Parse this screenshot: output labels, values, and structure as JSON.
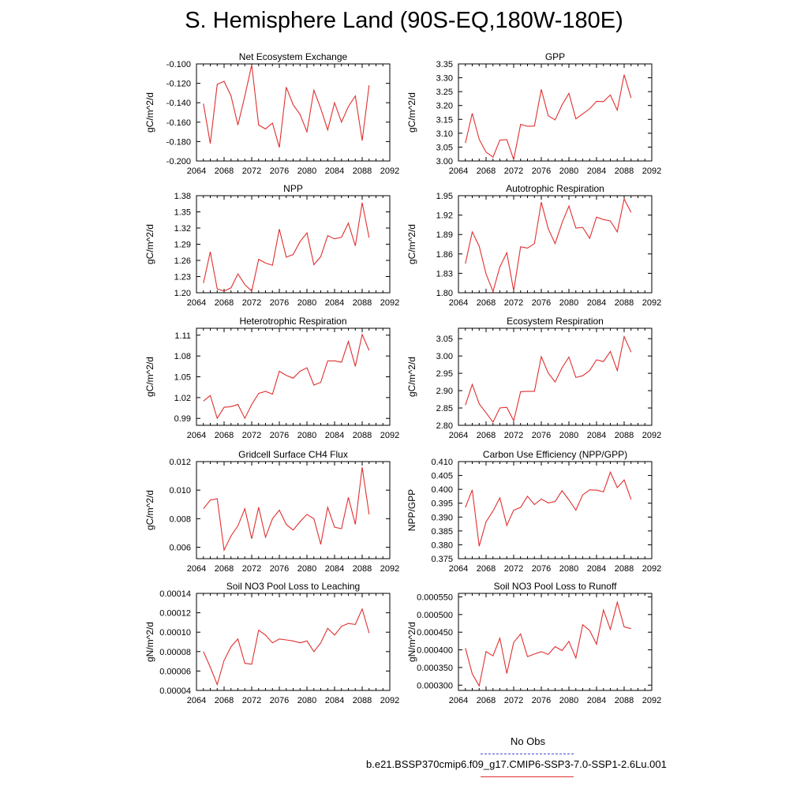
{
  "title": "S. Hemisphere Land (90S-EQ,180W-180E)",
  "legend": {
    "obs_label": "No Obs",
    "obs_color": "#4b4bd6",
    "case_label": "b.e21.BSSP370cmip6.f09_g17.CMIP6-SSP3-7.0-SSP1-2.6Lu.001",
    "case_color": "#e03030"
  },
  "chart_data": [
    {
      "type": "line",
      "title": "Net Ecosystem Exchange",
      "ylabel": "gC/m^2/d",
      "xlim": [
        2064,
        2092
      ],
      "xticks": [
        "2064",
        "2068",
        "2072",
        "2076",
        "2080",
        "2084",
        "2088",
        "2092"
      ],
      "ylim": [
        -0.2,
        -0.1
      ],
      "yticks": [
        "-0.100",
        "-0.120",
        "-0.140",
        "-0.160",
        "-0.180",
        "-0.200"
      ],
      "x": [
        2065,
        2066,
        2067,
        2068,
        2069,
        2070,
        2071,
        2072,
        2073,
        2074,
        2075,
        2076,
        2077,
        2078,
        2079,
        2080,
        2081,
        2082,
        2083,
        2084,
        2085,
        2086,
        2087,
        2088,
        2089
      ],
      "series": [
        {
          "values": [
            -0.141,
            -0.182,
            -0.121,
            -0.118,
            -0.133,
            -0.163,
            -0.133,
            -0.101,
            -0.163,
            -0.167,
            -0.161,
            -0.186,
            -0.124,
            -0.142,
            -0.152,
            -0.17,
            -0.127,
            -0.146,
            -0.168,
            -0.14,
            -0.16,
            -0.144,
            -0.133,
            -0.179,
            -0.122
          ]
        }
      ]
    },
    {
      "type": "line",
      "title": "GPP",
      "ylabel": "gC/m^2/d",
      "xlim": [
        2064,
        2092
      ],
      "xticks": [
        "2064",
        "2068",
        "2072",
        "2076",
        "2080",
        "2084",
        "2088",
        "2092"
      ],
      "ylim": [
        3.0,
        3.35
      ],
      "yticks": [
        "3.35",
        "3.30",
        "3.25",
        "3.20",
        "3.15",
        "3.10",
        "3.05",
        "3.00"
      ],
      "x": [
        2065,
        2066,
        2067,
        2068,
        2069,
        2070,
        2071,
        2072,
        2073,
        2074,
        2075,
        2076,
        2077,
        2078,
        2079,
        2080,
        2081,
        2082,
        2083,
        2084,
        2085,
        2086,
        2087,
        2088,
        2089
      ],
      "series": [
        {
          "values": [
            3.065,
            3.172,
            3.078,
            3.032,
            3.014,
            3.075,
            3.077,
            3.005,
            3.132,
            3.125,
            3.126,
            3.258,
            3.163,
            3.148,
            3.202,
            3.244,
            3.152,
            3.17,
            3.188,
            3.215,
            3.214,
            3.238,
            3.183,
            3.311,
            3.227
          ]
        }
      ]
    },
    {
      "type": "line",
      "title": "NPP",
      "ylabel": "gC/m^2/d",
      "xlim": [
        2064,
        2092
      ],
      "xticks": [
        "2064",
        "2068",
        "2072",
        "2076",
        "2080",
        "2084",
        "2088",
        "2092"
      ],
      "ylim": [
        1.2,
        1.38
      ],
      "yticks": [
        "1.38",
        "1.35",
        "1.32",
        "1.29",
        "1.26",
        "1.23",
        "1.20"
      ],
      "x": [
        2065,
        2066,
        2067,
        2068,
        2069,
        2070,
        2071,
        2072,
        2073,
        2074,
        2075,
        2076,
        2077,
        2078,
        2079,
        2080,
        2081,
        2082,
        2083,
        2084,
        2085,
        2086,
        2087,
        2088,
        2089
      ],
      "series": [
        {
          "values": [
            1.218,
            1.276,
            1.207,
            1.203,
            1.209,
            1.235,
            1.215,
            1.203,
            1.262,
            1.255,
            1.251,
            1.318,
            1.266,
            1.271,
            1.295,
            1.311,
            1.252,
            1.267,
            1.306,
            1.3,
            1.303,
            1.329,
            1.287,
            1.367,
            1.302
          ]
        }
      ]
    },
    {
      "type": "line",
      "title": "Autotrophic Respiration",
      "ylabel": "gC/m^2/d",
      "xlim": [
        2064,
        2092
      ],
      "xticks": [
        "2064",
        "2068",
        "2072",
        "2076",
        "2080",
        "2084",
        "2088",
        "2092"
      ],
      "ylim": [
        1.8,
        1.95
      ],
      "yticks": [
        "1.95",
        "1.92",
        "1.89",
        "1.86",
        "1.83",
        "1.80"
      ],
      "x": [
        2065,
        2066,
        2067,
        2068,
        2069,
        2070,
        2071,
        2072,
        2073,
        2074,
        2075,
        2076,
        2077,
        2078,
        2079,
        2080,
        2081,
        2082,
        2083,
        2084,
        2085,
        2086,
        2087,
        2088,
        2089
      ],
      "series": [
        {
          "values": [
            1.845,
            1.894,
            1.872,
            1.829,
            1.802,
            1.84,
            1.862,
            1.803,
            1.871,
            1.869,
            1.876,
            1.94,
            1.899,
            1.876,
            1.908,
            1.934,
            1.9,
            1.901,
            1.884,
            1.917,
            1.913,
            1.911,
            1.894,
            1.945,
            1.924
          ]
        }
      ]
    },
    {
      "type": "line",
      "title": "Heterotrophic Respiration",
      "ylabel": "gC/m^2/d",
      "xlim": [
        2064,
        2092
      ],
      "xticks": [
        "2064",
        "2068",
        "2072",
        "2076",
        "2080",
        "2084",
        "2088",
        "2092"
      ],
      "ylim": [
        0.98,
        1.12
      ],
      "yticks": [
        "1.11",
        "1.08",
        "1.05",
        "1.02",
        "0.99"
      ],
      "x": [
        2065,
        2066,
        2067,
        2068,
        2069,
        2070,
        2071,
        2072,
        2073,
        2074,
        2075,
        2076,
        2077,
        2078,
        2079,
        2080,
        2081,
        2082,
        2083,
        2084,
        2085,
        2086,
        2087,
        2088,
        2089
      ],
      "series": [
        {
          "values": [
            1.015,
            1.023,
            0.99,
            1.006,
            1.007,
            1.01,
            0.99,
            1.01,
            1.026,
            1.029,
            1.025,
            1.058,
            1.052,
            1.048,
            1.058,
            1.063,
            1.038,
            1.042,
            1.073,
            1.073,
            1.071,
            1.101,
            1.065,
            1.111,
            1.088
          ]
        }
      ]
    },
    {
      "type": "line",
      "title": "Ecosystem Respiration",
      "ylabel": "gC/m^2/d",
      "xlim": [
        2064,
        2092
      ],
      "xticks": [
        "2064",
        "2068",
        "2072",
        "2076",
        "2080",
        "2084",
        "2088",
        "2092"
      ],
      "ylim": [
        2.8,
        3.08
      ],
      "yticks": [
        "3.05",
        "3.00",
        "2.95",
        "2.90",
        "2.85",
        "2.80"
      ],
      "x": [
        2065,
        2066,
        2067,
        2068,
        2069,
        2070,
        2071,
        2072,
        2073,
        2074,
        2075,
        2076,
        2077,
        2078,
        2079,
        2080,
        2081,
        2082,
        2083,
        2084,
        2085,
        2086,
        2087,
        2088,
        2089
      ],
      "series": [
        {
          "values": [
            2.858,
            2.918,
            2.862,
            2.836,
            2.809,
            2.85,
            2.852,
            2.813,
            2.897,
            2.898,
            2.898,
            2.998,
            2.951,
            2.925,
            2.966,
            2.997,
            2.938,
            2.943,
            2.958,
            2.989,
            2.984,
            3.013,
            2.958,
            3.056,
            3.011
          ]
        }
      ]
    },
    {
      "type": "line",
      "title": "Gridcell Surface CH4 Flux",
      "ylabel": "gC/m^2/d",
      "xlim": [
        2064,
        2092
      ],
      "xticks": [
        "2064",
        "2068",
        "2072",
        "2076",
        "2080",
        "2084",
        "2088",
        "2092"
      ],
      "ylim": [
        0.0052,
        0.012
      ],
      "yticks": [
        "0.012",
        "0.010",
        "0.008",
        "0.006"
      ],
      "x": [
        2065,
        2066,
        2067,
        2068,
        2069,
        2070,
        2071,
        2072,
        2073,
        2074,
        2075,
        2076,
        2077,
        2078,
        2079,
        2080,
        2081,
        2082,
        2083,
        2084,
        2085,
        2086,
        2087,
        2088,
        2089
      ],
      "series": [
        {
          "values": [
            0.0087,
            0.0093,
            0.0094,
            0.0058,
            0.0068,
            0.0075,
            0.0087,
            0.0066,
            0.0088,
            0.0067,
            0.008,
            0.0086,
            0.0076,
            0.0072,
            0.0078,
            0.0083,
            0.008,
            0.0062,
            0.0088,
            0.0074,
            0.0073,
            0.0095,
            0.0076,
            0.0116,
            0.0083
          ]
        }
      ]
    },
    {
      "type": "line",
      "title": "Carbon Use Efficiency (NPP/GPP)",
      "ylabel": "NPP/GPP",
      "xlim": [
        2064,
        2092
      ],
      "xticks": [
        "2064",
        "2068",
        "2072",
        "2076",
        "2080",
        "2084",
        "2088",
        "2092"
      ],
      "ylim": [
        0.375,
        0.41
      ],
      "yticks": [
        "0.410",
        "0.405",
        "0.400",
        "0.395",
        "0.390",
        "0.385",
        "0.380",
        "0.375"
      ],
      "x": [
        2065,
        2066,
        2067,
        2068,
        2069,
        2070,
        2071,
        2072,
        2073,
        2074,
        2075,
        2076,
        2077,
        2078,
        2079,
        2080,
        2081,
        2082,
        2083,
        2084,
        2085,
        2086,
        2087,
        2088,
        2089
      ],
      "series": [
        {
          "values": [
            0.3935,
            0.3998,
            0.3795,
            0.3883,
            0.3922,
            0.3969,
            0.387,
            0.3925,
            0.3935,
            0.3975,
            0.3945,
            0.3965,
            0.3951,
            0.3956,
            0.3995,
            0.3962,
            0.3925,
            0.398,
            0.3998,
            0.3997,
            0.3991,
            0.4062,
            0.4006,
            0.4034,
            0.3963
          ]
        }
      ]
    },
    {
      "type": "line",
      "title": "Soil NO3 Pool Loss to Leaching",
      "ylabel": "gN/m^2/d",
      "xlim": [
        2064,
        2092
      ],
      "xticks": [
        "2064",
        "2068",
        "2072",
        "2076",
        "2080",
        "2084",
        "2088",
        "2092"
      ],
      "ylim": [
        4e-05,
        0.00014
      ],
      "yticks": [
        "0.00014",
        "0.00012",
        "0.00010",
        "0.00008",
        "0.00006",
        "0.00004"
      ],
      "x": [
        2065,
        2066,
        2067,
        2068,
        2069,
        2070,
        2071,
        2072,
        2073,
        2074,
        2075,
        2076,
        2077,
        2078,
        2079,
        2080,
        2081,
        2082,
        2083,
        2084,
        2085,
        2086,
        2087,
        2088,
        2089
      ],
      "series": [
        {
          "values": [
            8e-05,
            6.4e-05,
            4.6e-05,
            7.1e-05,
            8.5e-05,
            9.3e-05,
            6.8e-05,
            6.7e-05,
            0.000102,
            9.7e-05,
            8.9e-05,
            9.3e-05,
            9.2e-05,
            9.1e-05,
            8.9e-05,
            9.1e-05,
            8e-05,
            8.9e-05,
            0.000104,
            9.7e-05,
            0.000106,
            0.000109,
            0.000108,
            0.000124,
            9.9e-05
          ]
        }
      ]
    },
    {
      "type": "line",
      "title": "Soil NO3 Pool Loss to Runoff",
      "ylabel": "gN/m^2/d",
      "xlim": [
        2064,
        2092
      ],
      "xticks": [
        "2064",
        "2068",
        "2072",
        "2076",
        "2080",
        "2084",
        "2088",
        "2092"
      ],
      "ylim": [
        0.000285,
        0.00056
      ],
      "yticks": [
        "0.000550",
        "0.000500",
        "0.000450",
        "0.000400",
        "0.000350",
        "0.000300"
      ],
      "x": [
        2065,
        2066,
        2067,
        2068,
        2069,
        2070,
        2071,
        2072,
        2073,
        2074,
        2075,
        2076,
        2077,
        2078,
        2079,
        2080,
        2081,
        2082,
        2083,
        2084,
        2085,
        2086,
        2087,
        2088,
        2089
      ],
      "series": [
        {
          "values": [
            0.000405,
            0.000332,
            0.000298,
            0.000395,
            0.000383,
            0.000433,
            0.000333,
            0.000421,
            0.000445,
            0.000381,
            0.000388,
            0.000395,
            0.000387,
            0.000409,
            0.000398,
            0.000424,
            0.000377,
            0.000471,
            0.000455,
            0.000416,
            0.000513,
            0.000458,
            0.000535,
            0.000465,
            0.00046
          ]
        }
      ]
    }
  ]
}
